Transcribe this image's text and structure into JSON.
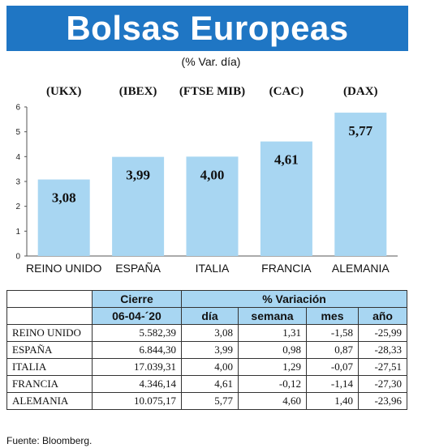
{
  "title": "Bolsas Europeas",
  "subtitle": "(% Var. día)",
  "chart_data": {
    "type": "bar",
    "categories": [
      "REINO UNIDO",
      "ESPAÑA",
      "ITALIA",
      "FRANCIA",
      "ALEMANIA"
    ],
    "index_labels": [
      "(UKX)",
      "(IBEX)",
      "(FTSE MIB)",
      "(CAC)",
      "(DAX)"
    ],
    "values": [
      3.08,
      3.99,
      4.0,
      4.61,
      5.77
    ],
    "value_labels": [
      "3,08",
      "3,99",
      "4,00",
      "4,61",
      "5,77"
    ],
    "ylim": [
      0,
      6
    ],
    "yticks": [
      0,
      1,
      2,
      3,
      4,
      5,
      6
    ],
    "grid": false,
    "bar_color": "#a8d6f2"
  },
  "table": {
    "header_cierre": "Cierre",
    "header_variacion": "% Variación",
    "date": "06-04-´20",
    "col_dia": "día",
    "col_semana": "semana",
    "col_mes": "mes",
    "col_ano": "año",
    "rows": [
      {
        "name": "REINO UNIDO",
        "cierre": "5.582,39",
        "dia": "3,08",
        "semana": "1,31",
        "mes": "-1,58",
        "ano": "-25,99"
      },
      {
        "name": "ESPAÑA",
        "cierre": "6.844,30",
        "dia": "3,99",
        "semana": "0,98",
        "mes": "0,87",
        "ano": "-28,33"
      },
      {
        "name": "ITALIA",
        "cierre": "17.039,31",
        "dia": "4,00",
        "semana": "1,29",
        "mes": "-0,07",
        "ano": "-27,51"
      },
      {
        "name": "FRANCIA",
        "cierre": "4.346,14",
        "dia": "4,61",
        "semana": "-0,12",
        "mes": "-1,14",
        "ano": "-27,30"
      },
      {
        "name": "ALEMANIA",
        "cierre": "10.075,17",
        "dia": "5,77",
        "semana": "4,60",
        "mes": "1,40",
        "ano": "-23,96"
      }
    ]
  },
  "source": "Fuente: Bloomberg.",
  "colors": {
    "title_bg": "#1f76c4",
    "header_bg": "#a8d6f2"
  }
}
